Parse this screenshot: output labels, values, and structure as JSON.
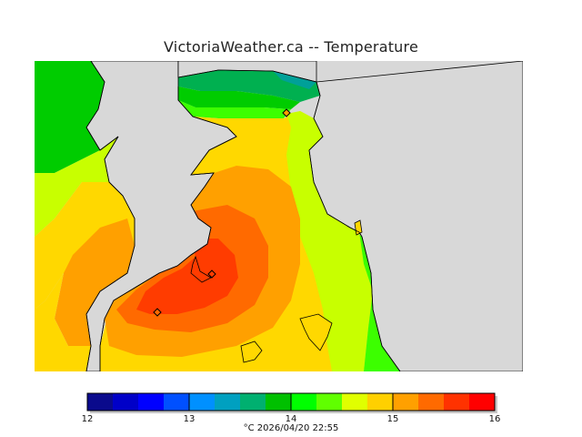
{
  "title": "VictoriaWeather.ca -- Temperature",
  "colorbar": {
    "ticks": [
      "12",
      "13",
      "14",
      "15",
      "16"
    ],
    "colors": [
      "#0a0a8c",
      "#0000c8",
      "#0000ff",
      "#0050ff",
      "#0090ff",
      "#00a0c0",
      "#00b070",
      "#00c000",
      "#00ff00",
      "#60ff00",
      "#e0ff00",
      "#ffd000",
      "#ffa000",
      "#ff6a00",
      "#ff3200",
      "#ff0000"
    ],
    "caption": "°C  2026/04/20 22:55"
  },
  "map_colors": {
    "land_background": "#d8d8d8",
    "coast": "#000000",
    "dark_green": "#00b050",
    "green": "#00cc00",
    "bright_green": "#3cff00",
    "yellow_green": "#c8ff00",
    "yellow": "#ffd800",
    "orange": "#ffa000",
    "dark_orange": "#ff6a00",
    "red_orange": "#ff3c00",
    "teal": "#00a098"
  }
}
